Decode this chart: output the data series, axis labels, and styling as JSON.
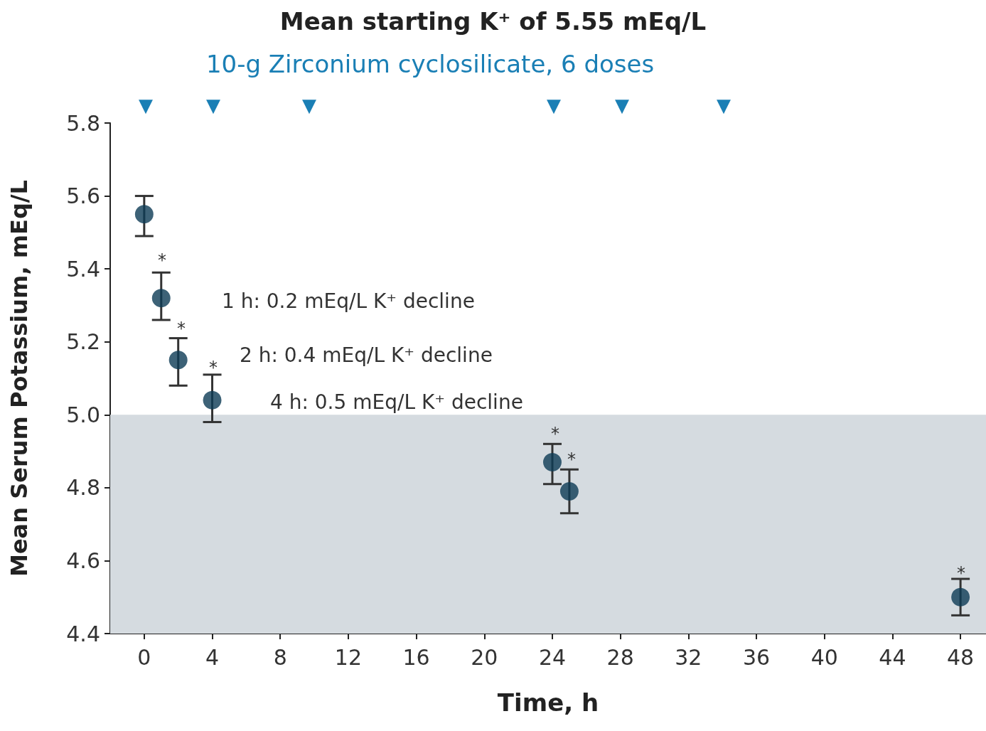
{
  "chart_data": {
    "type": "scatter",
    "title": "Mean starting K⁺ of 5.55 mEq/L",
    "subtitle": "10-g Zirconium cyclosilicate, 6 doses",
    "xlabel": "Time, h",
    "ylabel": "Mean Serum Potassium, mEq/L",
    "x": [
      0,
      1,
      2,
      4,
      24,
      25,
      48
    ],
    "series": [
      {
        "color": "#0d3b55",
        "values": [
          5.55,
          5.32,
          5.15,
          5.04,
          4.87,
          4.79,
          4.5
        ],
        "errors": [
          [
            5.49,
            5.6
          ],
          [
            5.26,
            5.39
          ],
          [
            5.08,
            5.21
          ],
          [
            4.98,
            5.11
          ],
          [
            4.81,
            4.92
          ],
          [
            4.73,
            4.85
          ],
          [
            4.45,
            4.55
          ]
        ]
      }
    ],
    "xlim": [
      -2,
      49.5
    ],
    "xticks": [
      0,
      4,
      8,
      12,
      16,
      20,
      24,
      28,
      32,
      36,
      40,
      44,
      48
    ],
    "ylim": [
      4.4,
      5.8
    ],
    "yticks": [
      4.4,
      4.6,
      4.8,
      {
        "value": 5,
        "label": "5.0"
      },
      5.2,
      5.4,
      5.6,
      5.8
    ],
    "bands": [
      {
        "axis": "y",
        "from": 4.4,
        "to": 5.0,
        "color": "#d5dbe0"
      }
    ],
    "annotations": [
      "*",
      "*",
      "*",
      "*",
      "*",
      "*",
      "1 h: 0.2 mEq/L K⁺ decline",
      "2 h: 0.4 mEq/L K⁺ decline",
      "4 h: 0.5 mEq/L K⁺ decline",
      "▼",
      "▼",
      "▼",
      "▼",
      "▼",
      "▼"
    ],
    "marker": "circle",
    "grid": false
  }
}
